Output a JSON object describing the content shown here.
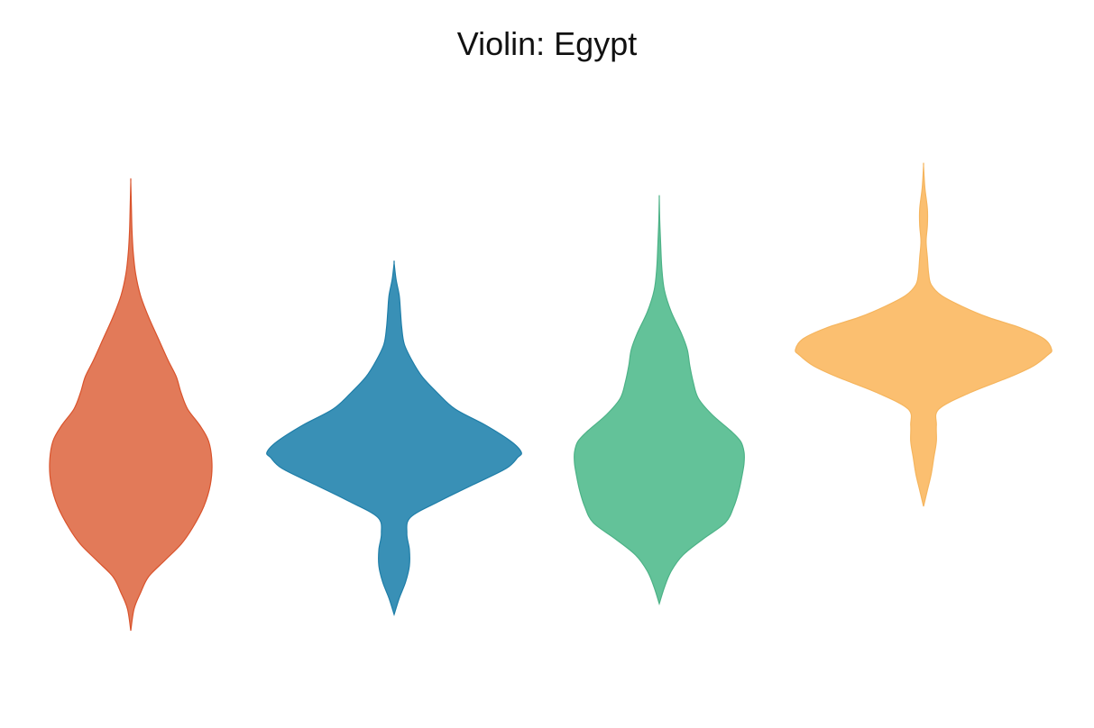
{
  "chart_data": {
    "type": "violin",
    "title": "Violin: Egypt",
    "xlabel": "",
    "ylabel": "",
    "ylim": [
      0,
      100
    ],
    "grid": false,
    "legend": "none",
    "series": [
      {
        "color": "#E07350",
        "stroke": "#D9532C",
        "min": 10,
        "max": 93,
        "density": [
          [
            10,
            0.0
          ],
          [
            14,
            0.04
          ],
          [
            17,
            0.12
          ],
          [
            20,
            0.22
          ],
          [
            23,
            0.42
          ],
          [
            26,
            0.62
          ],
          [
            29,
            0.76
          ],
          [
            33,
            0.9
          ],
          [
            37,
            0.98
          ],
          [
            41,
            1.0
          ],
          [
            45,
            0.96
          ],
          [
            48,
            0.85
          ],
          [
            51,
            0.7
          ],
          [
            54,
            0.62
          ],
          [
            57,
            0.56
          ],
          [
            60,
            0.46
          ],
          [
            64,
            0.34
          ],
          [
            68,
            0.22
          ],
          [
            72,
            0.12
          ],
          [
            76,
            0.06
          ],
          [
            80,
            0.03
          ],
          [
            84,
            0.015
          ],
          [
            88,
            0.008
          ],
          [
            93,
            0.0
          ]
        ]
      },
      {
        "color": "#2E8AB2",
        "stroke": "#1F7EA8",
        "min": 13,
        "max": 78,
        "density": [
          [
            13,
            0.0
          ],
          [
            16,
            0.04
          ],
          [
            19,
            0.09
          ],
          [
            22,
            0.12
          ],
          [
            25,
            0.12
          ],
          [
            28,
            0.1
          ],
          [
            31,
            0.13
          ],
          [
            34,
            0.36
          ],
          [
            37,
            0.62
          ],
          [
            40,
            0.88
          ],
          [
            42,
            0.97
          ],
          [
            43,
            1.0
          ],
          [
            45,
            0.92
          ],
          [
            48,
            0.72
          ],
          [
            51,
            0.48
          ],
          [
            54,
            0.34
          ],
          [
            57,
            0.22
          ],
          [
            60,
            0.14
          ],
          [
            63,
            0.08
          ],
          [
            66,
            0.06
          ],
          [
            69,
            0.05
          ],
          [
            72,
            0.04
          ],
          [
            75,
            0.015
          ],
          [
            78,
            0.0
          ]
        ]
      },
      {
        "color": "#5BBF94",
        "stroke": "#4DB287",
        "min": 15,
        "max": 90,
        "density": [
          [
            15,
            0.0
          ],
          [
            18,
            0.06
          ],
          [
            21,
            0.14
          ],
          [
            24,
            0.28
          ],
          [
            27,
            0.52
          ],
          [
            30,
            0.78
          ],
          [
            33,
            0.88
          ],
          [
            36,
            0.94
          ],
          [
            39,
            0.98
          ],
          [
            41,
            1.0
          ],
          [
            43,
            1.0
          ],
          [
            45,
            0.96
          ],
          [
            47,
            0.84
          ],
          [
            50,
            0.62
          ],
          [
            53,
            0.46
          ],
          [
            56,
            0.4
          ],
          [
            59,
            0.36
          ],
          [
            62,
            0.33
          ],
          [
            65,
            0.26
          ],
          [
            69,
            0.14
          ],
          [
            73,
            0.06
          ],
          [
            77,
            0.03
          ],
          [
            82,
            0.015
          ],
          [
            86,
            0.005
          ],
          [
            90,
            0.0
          ]
        ]
      },
      {
        "color": "#FBBC68",
        "stroke": "#F5B55E",
        "min": 33,
        "max": 96,
        "density": [
          [
            33,
            0.0
          ],
          [
            36,
            0.03
          ],
          [
            39,
            0.06
          ],
          [
            42,
            0.08
          ],
          [
            45,
            0.1
          ],
          [
            48,
            0.1
          ],
          [
            51,
            0.12
          ],
          [
            54,
            0.36
          ],
          [
            57,
            0.68
          ],
          [
            59,
            0.86
          ],
          [
            61,
            0.97
          ],
          [
            62,
            1.0
          ],
          [
            64,
            0.94
          ],
          [
            66,
            0.76
          ],
          [
            68,
            0.5
          ],
          [
            70,
            0.3
          ],
          [
            72,
            0.14
          ],
          [
            74,
            0.06
          ],
          [
            76,
            0.04
          ],
          [
            79,
            0.03
          ],
          [
            82,
            0.02
          ],
          [
            85,
            0.03
          ],
          [
            88,
            0.03
          ],
          [
            92,
            0.01
          ],
          [
            96,
            0.0
          ]
        ]
      }
    ]
  }
}
